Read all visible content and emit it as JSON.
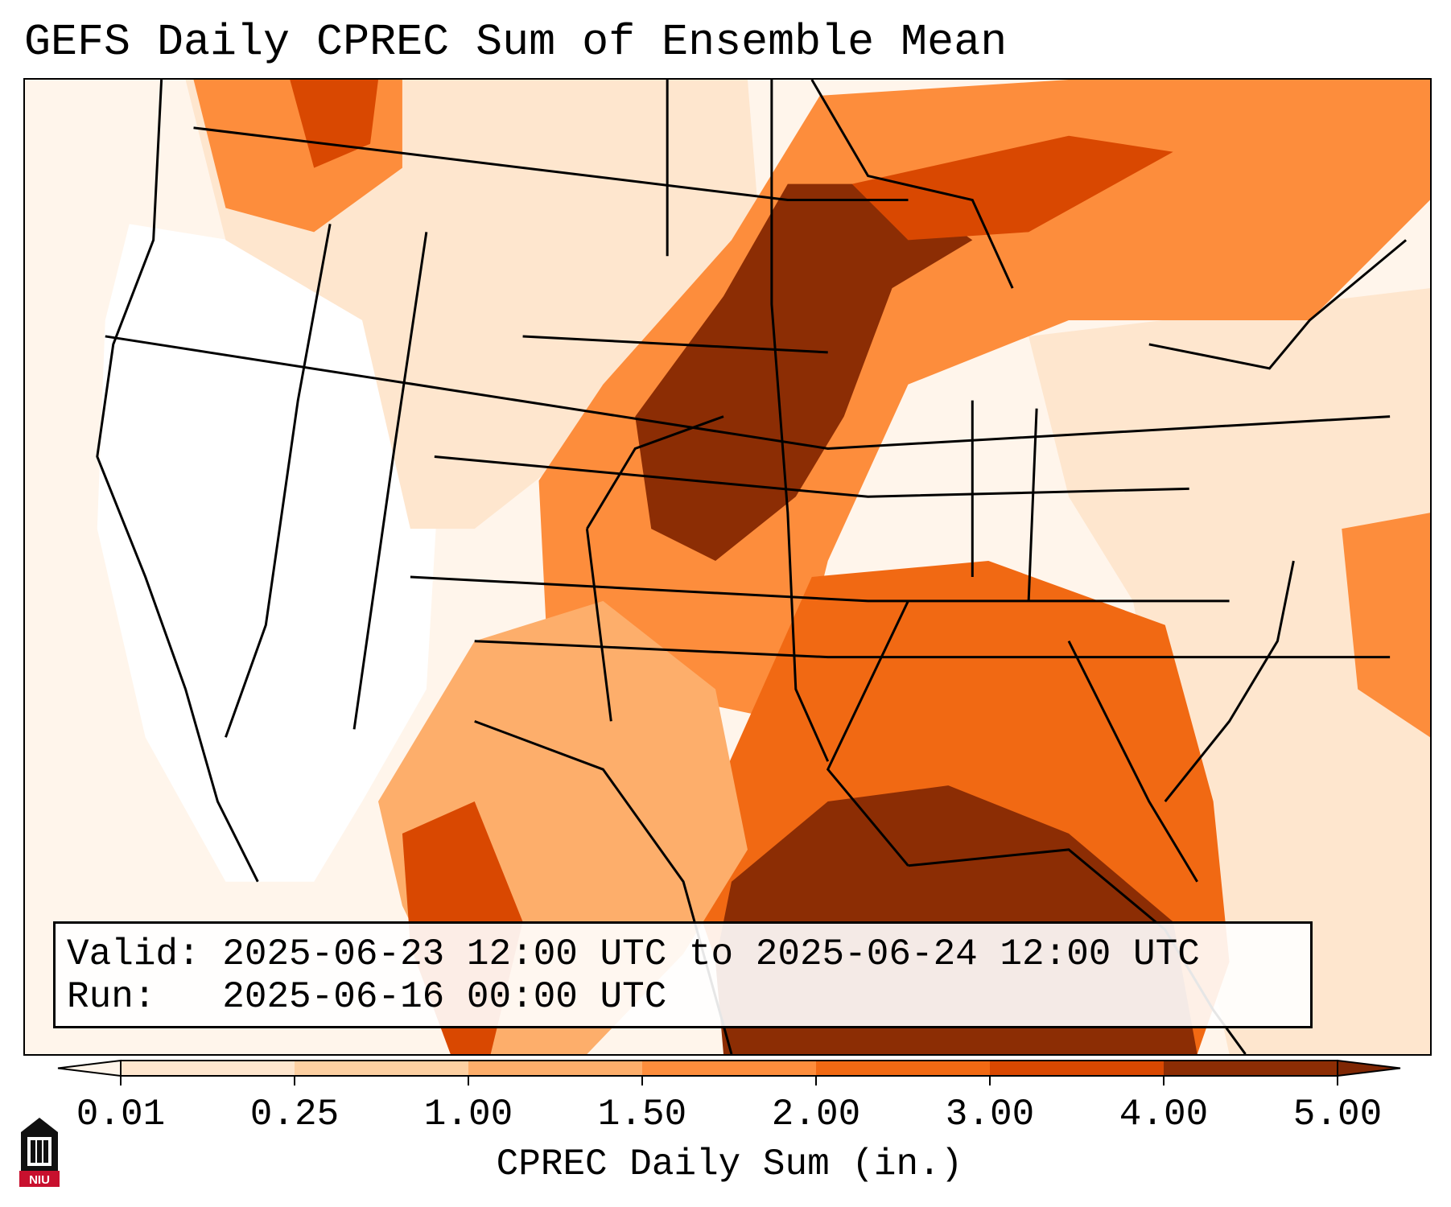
{
  "title": "GEFS Daily CPREC Sum of Ensemble Mean",
  "info": {
    "valid_line": "Valid: 2025-06-23 12:00 UTC to 2025-06-24 12:00 UTC",
    "run_line": "Run:   2025-06-16 00:00 UTC"
  },
  "colorbar": {
    "label": "CPREC Daily Sum (in.)",
    "ticks": [
      "0.01",
      "0.25",
      "1.00",
      "1.50",
      "2.00",
      "3.00",
      "4.00",
      "5.00"
    ],
    "colors": [
      "#fff5eb",
      "#fee6ce",
      "#fdd0a2",
      "#fdae6b",
      "#fd8d3c",
      "#f16913",
      "#d94801",
      "#8c2d04"
    ],
    "under_color": "#fff5eb",
    "over_color": "#7f2704"
  },
  "logo": {
    "text": "NIU",
    "color": "#c8102e"
  }
}
